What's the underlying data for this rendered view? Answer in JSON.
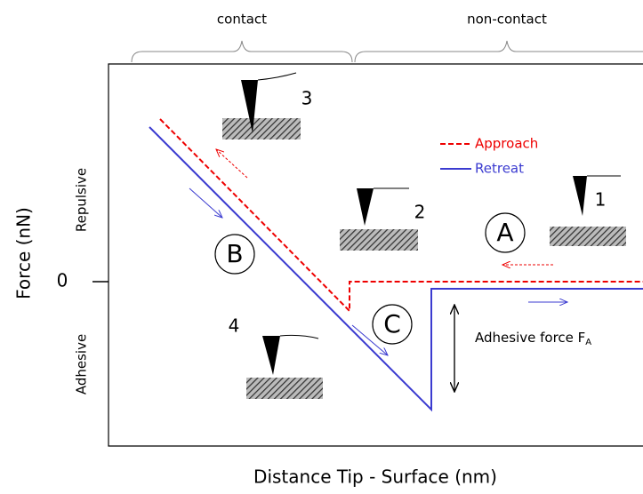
{
  "regions": {
    "contact": "contact",
    "non_contact": "non-contact"
  },
  "axes": {
    "y_label": "Force (nN)",
    "x_label": "Distance Tip - Surface (nm)",
    "zero": "0",
    "repulsive": "Repulsive",
    "adhesive": "Adhesive"
  },
  "legend": {
    "approach": "Approach",
    "retreat": "Retreat"
  },
  "phases": {
    "a": "A",
    "b": "B",
    "c": "C"
  },
  "stages": {
    "one": "1",
    "two": "2",
    "three": "3",
    "four": "4"
  },
  "annotation": {
    "text": "Adhesive force F",
    "subscript": "A"
  }
}
